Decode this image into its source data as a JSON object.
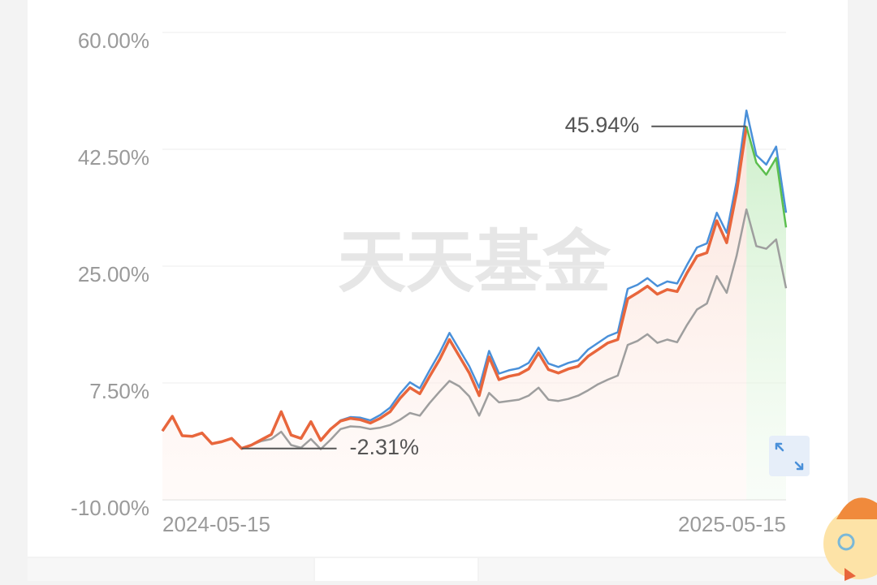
{
  "chart_data": {
    "type": "line",
    "categories": [
      "2024-05-15",
      null,
      null,
      null,
      null,
      null,
      null,
      null,
      null,
      null,
      null,
      null,
      null,
      null,
      null,
      null,
      null,
      null,
      null,
      null,
      null,
      null,
      null,
      null,
      null,
      null,
      null,
      null,
      null,
      null,
      null,
      null,
      null,
      null,
      null,
      null,
      null,
      null,
      null,
      null,
      null,
      null,
      null,
      null,
      null,
      null,
      null,
      null,
      null,
      null,
      null,
      null,
      null,
      null,
      null,
      null,
      null,
      null,
      null,
      null,
      null,
      null,
      null,
      "2025-05-15"
    ],
    "series": [
      {
        "color": "#9e9e9e",
        "values": [
          0.3,
          2.5,
          -0.4,
          -0.5,
          0.0,
          -1.6,
          -1.3,
          -0.8,
          -2.31,
          -1.8,
          -1.2,
          -0.9,
          0.2,
          -1.8,
          -2.2,
          -0.9,
          -2.4,
          -1.0,
          0.6,
          1.0,
          0.9,
          0.6,
          0.8,
          1.2,
          2.0,
          3.0,
          2.6,
          4.5,
          6.2,
          7.8,
          7.0,
          5.5,
          2.6,
          6.0,
          4.6,
          4.8,
          5.0,
          5.6,
          6.8,
          5.0,
          4.8,
          5.1,
          5.6,
          6.4,
          7.3,
          8.0,
          8.6,
          13.2,
          13.8,
          14.8,
          13.5,
          14.0,
          13.6,
          16.2,
          18.5,
          19.4,
          23.5,
          21.0,
          26.5,
          33.5,
          28.0,
          27.6,
          29.0,
          21.7
        ]
      },
      {
        "color": "#4a90d9",
        "values": [
          0.3,
          2.5,
          -0.4,
          -0.5,
          0.0,
          -1.6,
          -1.3,
          -0.8,
          -2.31,
          -1.8,
          -1.0,
          -0.2,
          3.2,
          -0.3,
          -0.8,
          1.7,
          -1.1,
          0.6,
          1.9,
          2.4,
          2.3,
          1.9,
          2.7,
          3.8,
          5.9,
          7.6,
          6.7,
          9.4,
          12.0,
          15.0,
          12.5,
          10.0,
          6.8,
          12.3,
          8.9,
          9.4,
          9.7,
          10.5,
          12.8,
          10.4,
          9.9,
          10.5,
          10.9,
          12.5,
          13.5,
          14.5,
          15.1,
          21.6,
          22.2,
          23.2,
          22.0,
          22.7,
          22.4,
          25.2,
          27.8,
          28.4,
          33.0,
          30.0,
          37.6,
          48.3,
          41.6,
          40.2,
          42.9,
          33.0
        ]
      },
      {
        "color": "#e8663c",
        "values": [
          0.3,
          2.5,
          -0.4,
          -0.5,
          0.0,
          -1.6,
          -1.3,
          -0.8,
          -2.31,
          -1.8,
          -1.0,
          -0.2,
          3.2,
          -0.3,
          -0.8,
          1.7,
          -1.1,
          0.6,
          1.8,
          2.2,
          2.0,
          1.5,
          2.2,
          3.2,
          5.2,
          6.8,
          5.9,
          8.5,
          11.0,
          14.0,
          11.5,
          9.0,
          5.6,
          11.4,
          8.0,
          8.5,
          8.8,
          9.6,
          12.0,
          9.5,
          9.0,
          9.6,
          10.0,
          11.5,
          12.5,
          13.5,
          14.0,
          20.1,
          21.0,
          22.0,
          20.8,
          21.5,
          21.2,
          24.0,
          26.5,
          27.0,
          31.8,
          28.5,
          36.0,
          45.94,
          null,
          null,
          null,
          null
        ]
      },
      {
        "color": "#5cbf4f",
        "values": [
          null,
          null,
          null,
          null,
          null,
          null,
          null,
          null,
          null,
          null,
          null,
          null,
          null,
          null,
          null,
          null,
          null,
          null,
          null,
          null,
          null,
          null,
          null,
          null,
          null,
          null,
          null,
          null,
          null,
          null,
          null,
          null,
          null,
          null,
          null,
          null,
          null,
          null,
          null,
          null,
          null,
          null,
          null,
          null,
          null,
          null,
          null,
          null,
          null,
          null,
          null,
          null,
          null,
          null,
          null,
          null,
          null,
          null,
          null,
          45.94,
          40.5,
          38.7,
          41.2,
          30.8
        ]
      }
    ],
    "ylim": [
      -10,
      60
    ],
    "yticks": [
      {
        "value": -10,
        "label": "-10.00%"
      },
      {
        "value": 7.5,
        "label": "7.50%"
      },
      {
        "value": 25,
        "label": "25.00%"
      },
      {
        "value": 42.5,
        "label": "42.50%"
      },
      {
        "value": 60,
        "label": "60.00%"
      }
    ],
    "grid": true,
    "annotations": [
      {
        "value": 45.94,
        "label": "45.94%"
      },
      {
        "value": -2.31,
        "label": "-2.31%"
      }
    ],
    "watermark": "天天基金"
  }
}
